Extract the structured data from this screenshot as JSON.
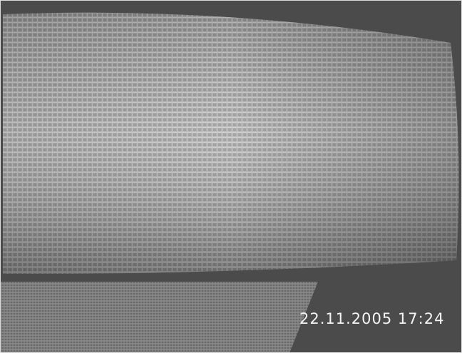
{
  "overlay": {
    "timestamp": "22.11.2005 17:24"
  }
}
